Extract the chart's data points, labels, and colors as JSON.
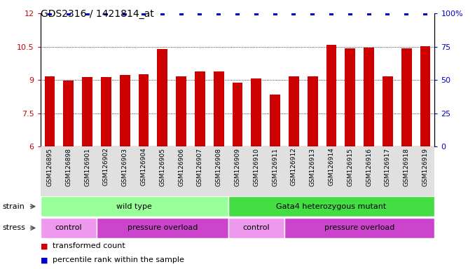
{
  "title": "GDS2316 / 1421814_at",
  "samples": [
    "GSM126895",
    "GSM126898",
    "GSM126901",
    "GSM126902",
    "GSM126903",
    "GSM126904",
    "GSM126905",
    "GSM126906",
    "GSM126907",
    "GSM126908",
    "GSM126909",
    "GSM126910",
    "GSM126911",
    "GSM126912",
    "GSM126913",
    "GSM126914",
    "GSM126915",
    "GSM126916",
    "GSM126917",
    "GSM126918",
    "GSM126919"
  ],
  "bar_values": [
    9.15,
    8.97,
    9.13,
    9.13,
    9.23,
    9.27,
    10.4,
    9.15,
    9.38,
    9.38,
    8.87,
    9.08,
    8.35,
    9.18,
    9.18,
    10.6,
    10.42,
    10.46,
    9.15,
    10.44,
    10.52
  ],
  "percentile_values": [
    100,
    100,
    100,
    100,
    100,
    100,
    100,
    100,
    100,
    100,
    100,
    100,
    100,
    100,
    100,
    100,
    100,
    100,
    100,
    100,
    100
  ],
  "bar_color": "#cc0000",
  "percentile_color": "#0000cc",
  "ylim_left": [
    6,
    12
  ],
  "ylim_right": [
    0,
    100
  ],
  "yticks_left": [
    6,
    7.5,
    9,
    10.5,
    12
  ],
  "yticks_right": [
    0,
    25,
    50,
    75,
    100
  ],
  "grid_values": [
    7.5,
    9.0,
    10.5
  ],
  "strain_groups": [
    {
      "label": "wild type",
      "start": 0,
      "end": 10,
      "color": "#99ff99"
    },
    {
      "label": "Gata4 heterozygous mutant",
      "start": 10,
      "end": 21,
      "color": "#44dd44"
    }
  ],
  "stress_groups": [
    {
      "label": "control",
      "start": 0,
      "end": 3,
      "color": "#ee99ee"
    },
    {
      "label": "pressure overload",
      "start": 3,
      "end": 10,
      "color": "#cc44cc"
    },
    {
      "label": "control",
      "start": 10,
      "end": 13,
      "color": "#ee99ee"
    },
    {
      "label": "pressure overload",
      "start": 13,
      "end": 21,
      "color": "#cc44cc"
    }
  ],
  "legend_items": [
    {
      "label": "transformed count",
      "color": "#cc0000"
    },
    {
      "label": "percentile rank within the sample",
      "color": "#0000cc"
    }
  ],
  "title_fontsize": 10,
  "bar_width": 0.55
}
